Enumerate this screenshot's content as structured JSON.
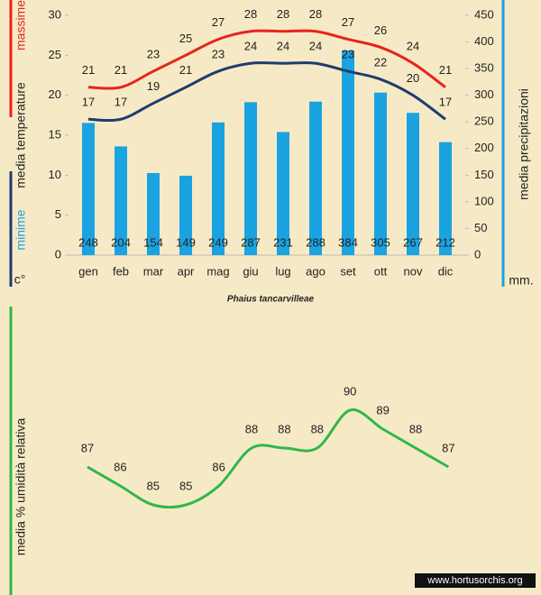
{
  "chart_data": [
    {
      "type": "combo",
      "categories": [
        "gen",
        "feb",
        "mar",
        "apr",
        "mag",
        "giu",
        "lug",
        "ago",
        "set",
        "ott",
        "nov",
        "dic"
      ],
      "series": [
        {
          "name": "massime",
          "type": "line",
          "color": "#e8231e",
          "values": [
            21,
            21,
            23,
            25,
            27,
            28,
            28,
            28,
            27,
            26,
            24,
            21
          ]
        },
        {
          "name": "minime",
          "type": "line",
          "color": "#1f3c6e",
          "values": [
            17,
            17,
            19,
            21,
            23,
            24,
            24,
            24,
            23,
            22,
            20,
            17
          ]
        },
        {
          "type": "bar",
          "axis": "y2",
          "color": "#1aa3e0",
          "values": [
            248,
            204,
            154,
            149,
            249,
            287,
            231,
            288,
            384,
            305,
            267,
            212
          ]
        }
      ],
      "ylim": [
        0,
        30
      ],
      "yticks": [
        0,
        5,
        10,
        15,
        20,
        25,
        30
      ],
      "y2lim": [
        0,
        450
      ],
      "y2ticks": [
        0,
        50,
        100,
        150,
        200,
        250,
        300,
        350,
        400,
        450
      ],
      "y_label": "media  temperature",
      "y_unit": "c°",
      "y2_label": "media  precipitazioni",
      "y2_unit": "mm.",
      "caption": "Phaius tancarvilleae"
    },
    {
      "type": "line",
      "series": [
        {
          "color": "#2eb84a",
          "values": [
            87,
            86,
            85,
            85,
            86,
            88,
            88,
            88,
            90,
            89,
            88,
            87
          ]
        }
      ],
      "y_label": "media %  umidità relativa"
    }
  ],
  "watermark": "www.hortusorchis.org"
}
